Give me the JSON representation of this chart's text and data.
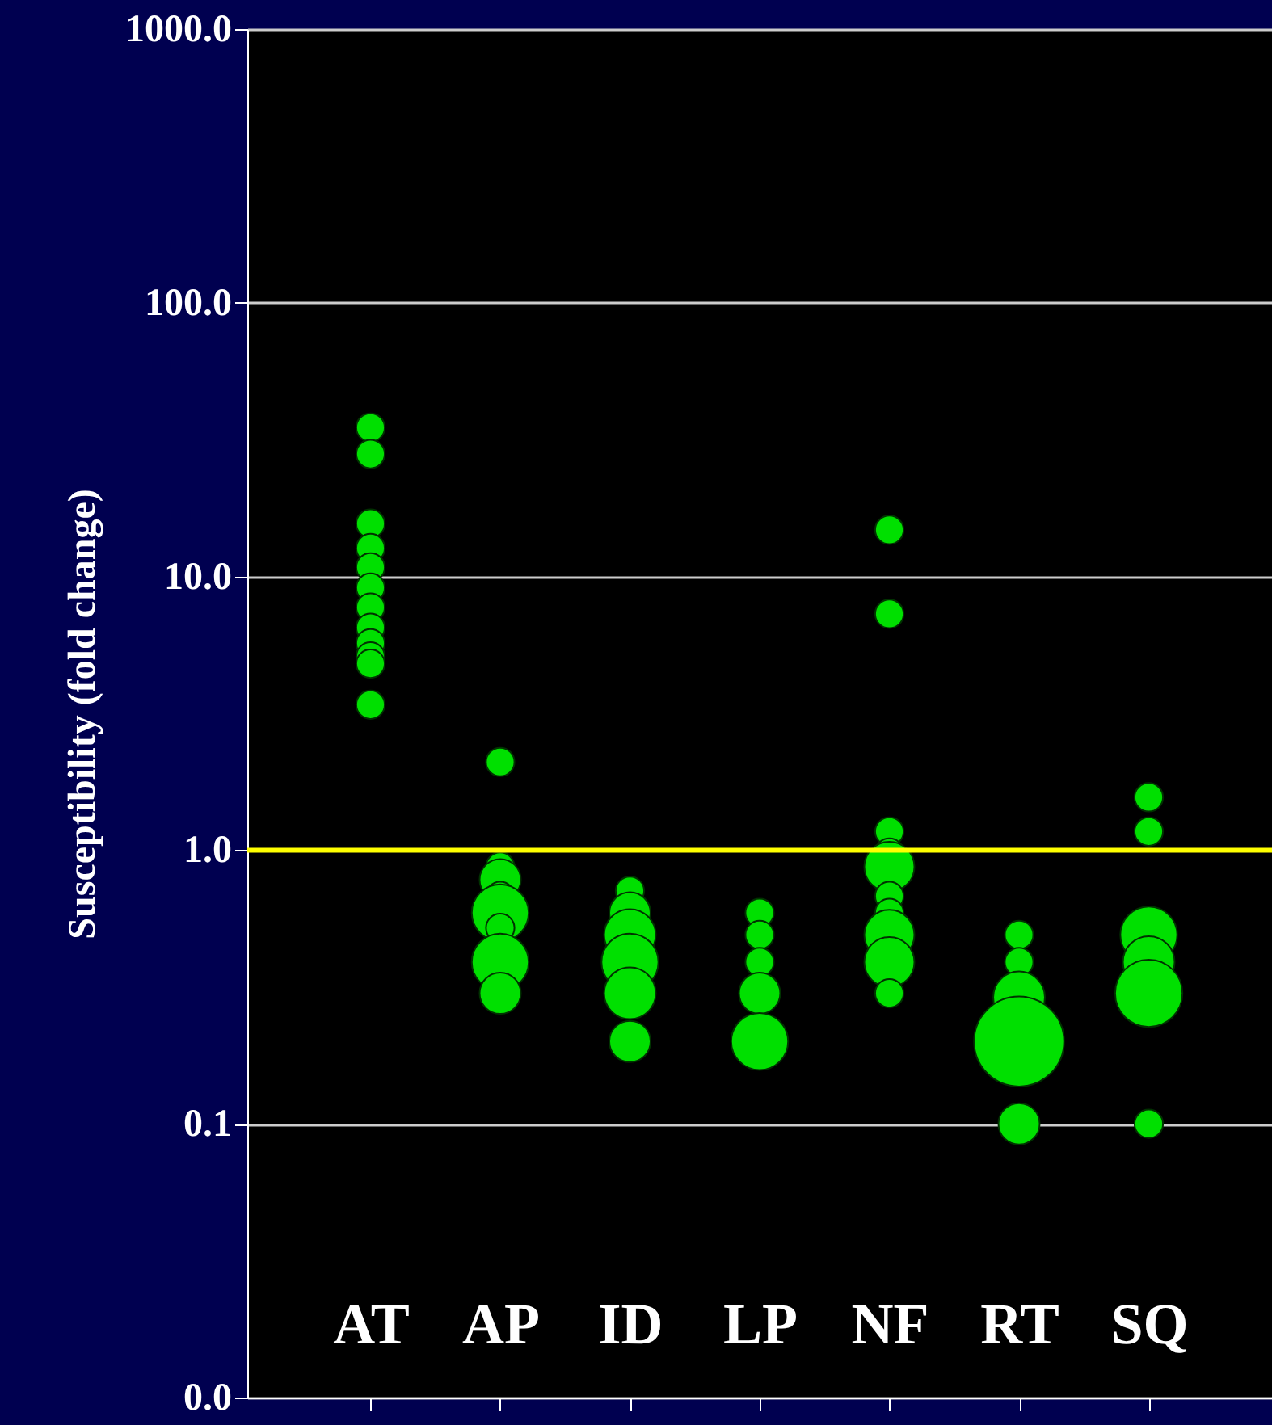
{
  "chart_data": {
    "type": "bubble",
    "ylabel": "Susceptibility (fold change)",
    "categories": [
      "AT",
      "AP",
      "ID",
      "LP",
      "NF",
      "RT",
      "SQ"
    ],
    "series": [
      {
        "color": "#00e000",
        "x": [
          "AT",
          "AT",
          "AT",
          "AT",
          "AT",
          "AT",
          "AT",
          "AT",
          "AT",
          "AT",
          "AT",
          "AT",
          "AP",
          "AP",
          "AP",
          "AP",
          "AP",
          "AP",
          "AP",
          "AP",
          "ID",
          "ID",
          "ID",
          "ID",
          "ID",
          "ID",
          "LP",
          "LP",
          "LP",
          "LP",
          "LP",
          "NF",
          "NF",
          "NF",
          "NF",
          "NF",
          "NF",
          "NF",
          "NF",
          "NF",
          "NF",
          "RT",
          "RT",
          "RT",
          "RT",
          "RT",
          "SQ",
          "SQ",
          "SQ",
          "SQ",
          "SQ",
          "SQ"
        ],
        "values": [
          35,
          28,
          15.6,
          12.7,
          10.8,
          9.1,
          7.7,
          6.5,
          5.7,
          5.1,
          4.8,
          3.4,
          2.1,
          0.87,
          0.78,
          0.68,
          0.59,
          0.52,
          0.39,
          0.3,
          0.71,
          0.59,
          0.49,
          0.39,
          0.3,
          0.2,
          0.59,
          0.49,
          0.39,
          0.3,
          0.2,
          14.8,
          7.3,
          1.17,
          0.98,
          0.87,
          0.68,
          0.59,
          0.49,
          0.39,
          0.3,
          0.49,
          0.39,
          0.29,
          0.2,
          0.1,
          1.56,
          1.17,
          0.49,
          0.39,
          0.3,
          0.1
        ],
        "sizes": [
          0.1,
          0.1,
          0.1,
          0.1,
          0.1,
          0.1,
          0.1,
          0.1,
          0.1,
          0.1,
          0.1,
          0.1,
          0.1,
          0.1,
          0.21,
          0.1,
          0.4,
          0.1,
          0.4,
          0.21,
          0.1,
          0.21,
          0.33,
          0.4,
          0.33,
          0.21,
          0.1,
          0.1,
          0.1,
          0.21,
          0.4,
          0.1,
          0.1,
          0.1,
          0.1,
          0.31,
          0.1,
          0.1,
          0.31,
          0.31,
          0.1,
          0.1,
          0.1,
          0.33,
          1,
          0.21,
          0.1,
          0.1,
          0.4,
          0.33,
          0.56,
          0.1
        ]
      }
    ],
    "log": "y",
    "ylim": [
      0.01,
      1000
    ],
    "yticks": [
      {
        "value": 0.01,
        "label": "0.0"
      },
      {
        "value": 0.1,
        "label": "0.1"
      },
      {
        "value": 1,
        "label": "1.0"
      },
      {
        "value": 10,
        "label": "10.0"
      },
      {
        "value": 100,
        "label": "100.0"
      },
      {
        "value": 1000,
        "label": "1000.0"
      }
    ],
    "grid": "y",
    "ref_lines": [
      {
        "axis": "y",
        "value": 1,
        "color": "#ffff00"
      }
    ]
  }
}
